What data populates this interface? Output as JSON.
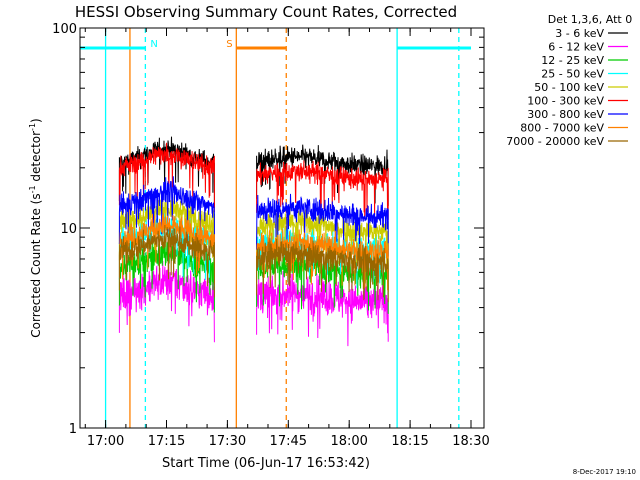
{
  "chart_data": {
    "type": "line",
    "title": "HESSI Observing Summary Count Rates, Corrected",
    "xlabel": "Start Time (06-Jun-17 16:53:42)",
    "ylabel_main": "Corrected Count Rate (s",
    "ylabel_sup1": "-1",
    "ylabel_mid": " detector",
    "ylabel_sup2": "-1",
    "ylabel_end": ")",
    "yscale": "log",
    "ylim": [
      1,
      100
    ],
    "xlim_minutes": [
      16.9,
      91.3
    ],
    "x_ticks": [
      {
        "label": "17:00",
        "minute": 60
      },
      {
        "label": "17:15",
        "minute": 75
      },
      {
        "label": "17:30",
        "minute": 90
      },
      {
        "label": "17:45",
        "minute": 105
      },
      {
        "label": "18:00",
        "minute": 120
      },
      {
        "label": "18:15",
        "minute": 135
      },
      {
        "label": "18:30",
        "minute": 150
      }
    ],
    "y_ticks": [
      {
        "label": "1",
        "value": 1
      },
      {
        "label": "10",
        "value": 10
      },
      {
        "label": "100",
        "value": 100
      }
    ],
    "legend_title": "Det 1,3,6, Att 0",
    "legend_position": "right",
    "series": [
      {
        "name": "3 - 6 keV",
        "color": "#000000",
        "level1": 21.0,
        "level2": 21.5,
        "noise": 0.05
      },
      {
        "name": "6 - 12 keV",
        "color": "#ff00ff",
        "level1": 4.6,
        "level2": 4.5,
        "noise": 0.09
      },
      {
        "name": "12 - 25 keV",
        "color": "#00cc00",
        "level1": 6.3,
        "level2": 6.2,
        "noise": 0.07
      },
      {
        "name": "25 - 50 keV",
        "color": "#00ffff",
        "level1": 8.5,
        "level2": 8.2,
        "noise": 0.07
      },
      {
        "name": "50 - 100 keV",
        "color": "#cccc00",
        "level1": 10.6,
        "level2": 10.1,
        "noise": 0.06
      },
      {
        "name": "100 - 300 keV",
        "color": "#ff0000",
        "level1": 20.0,
        "level2": 18.3,
        "noise": 0.05
      },
      {
        "name": "300 - 800 keV",
        "color": "#0000ff",
        "level1": 12.8,
        "level2": 12.0,
        "noise": 0.06
      },
      {
        "name": "800 - 7000 keV",
        "color": "#ff8000",
        "level1": 8.7,
        "level2": 8.0,
        "noise": 0.06
      },
      {
        "name": "7000 - 20000 keV",
        "color": "#996600",
        "level1": 7.5,
        "level2": 7.1,
        "noise": 0.06
      }
    ],
    "data_intervals_minutes": [
      [
        63.4,
        86.8
      ],
      [
        97.2,
        129.6
      ]
    ],
    "night_intervals_minutes": [
      [
        62.6,
        92.2
      ],
      [
        104.5,
        132.1
      ]
    ],
    "saa_bars": [
      {
        "label": "N",
        "start": 0,
        "end": 69.8,
        "color": "#00ffff"
      },
      {
        "label": "S",
        "start": 92.2,
        "end": 104.5,
        "color": "#ff8000"
      },
      {
        "label": "",
        "start": 131.8,
        "end": 150.0,
        "color": "#00ffff"
      }
    ],
    "vertical_markers": [
      {
        "minute": 60.0,
        "color": "#00ffff",
        "dashed": false
      },
      {
        "minute": 69.8,
        "color": "#00ffff",
        "dashed": true
      },
      {
        "minute": 66.0,
        "color": "#ff8000",
        "dashed": false
      },
      {
        "minute": 92.2,
        "color": "#ff8000",
        "dashed": false
      },
      {
        "minute": 104.5,
        "color": "#ff8000",
        "dashed": true
      },
      {
        "minute": 131.8,
        "color": "#00ffff",
        "dashed": false
      },
      {
        "minute": 147.0,
        "color": "#00ffff",
        "dashed": true
      }
    ]
  },
  "footer_date": "8-Dec-2017 19:10"
}
